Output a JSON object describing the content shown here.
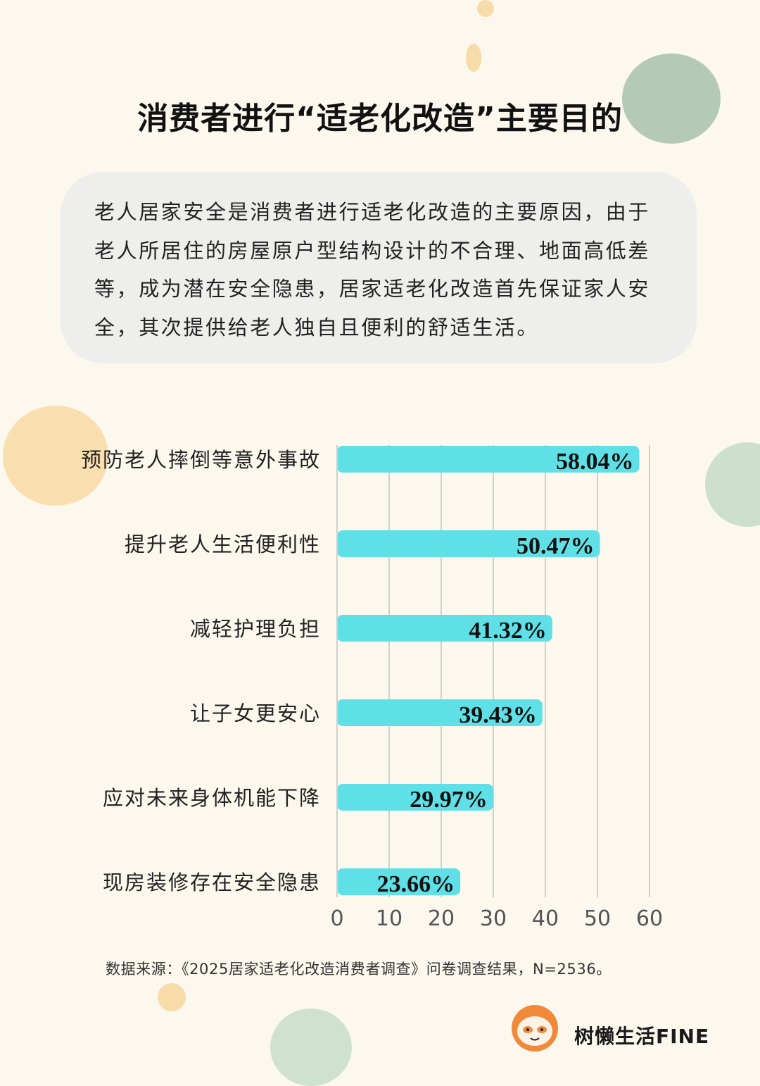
{
  "title": "消费者进行“适老化改造”主要目的",
  "intro": "老人居家安全是消费者进行适老化改造的主要原因，由于老人所居住的房屋原户型结构设计的不合理、地面高低差等，成为潜在安全隐患，居家适老化改造首先保证家人安全，其次提供给老人独自且便利的舒适生活。",
  "source": "数据来源：《2025居家适老化改造消费者调查》问卷调查结果，N=2536。",
  "brand": {
    "name": "树懒生活FINE",
    "logo_icon": "sloth-logo-icon"
  },
  "colors": {
    "bar": "#5ee0e6",
    "grid": "#cfcfcf",
    "background": "#fcf8ee"
  },
  "chart_data": {
    "type": "bar",
    "orientation": "horizontal",
    "categories": [
      "预防老人摔倒等意外事故",
      "提升老人生活便利性",
      "减轻护理负担",
      "让子女更安心",
      "应对未来身体机能下降",
      "现房装修存在安全隐患"
    ],
    "values": [
      58.04,
      50.47,
      41.32,
      39.43,
      29.97,
      23.66
    ],
    "value_labels": [
      "58.04%",
      "50.47%",
      "41.32%",
      "39.43%",
      "29.97%",
      "23.66%"
    ],
    "xticks": [
      "0",
      "10",
      "20",
      "30",
      "40",
      "50",
      "60"
    ],
    "xlim": [
      0,
      60
    ],
    "grid": true
  }
}
